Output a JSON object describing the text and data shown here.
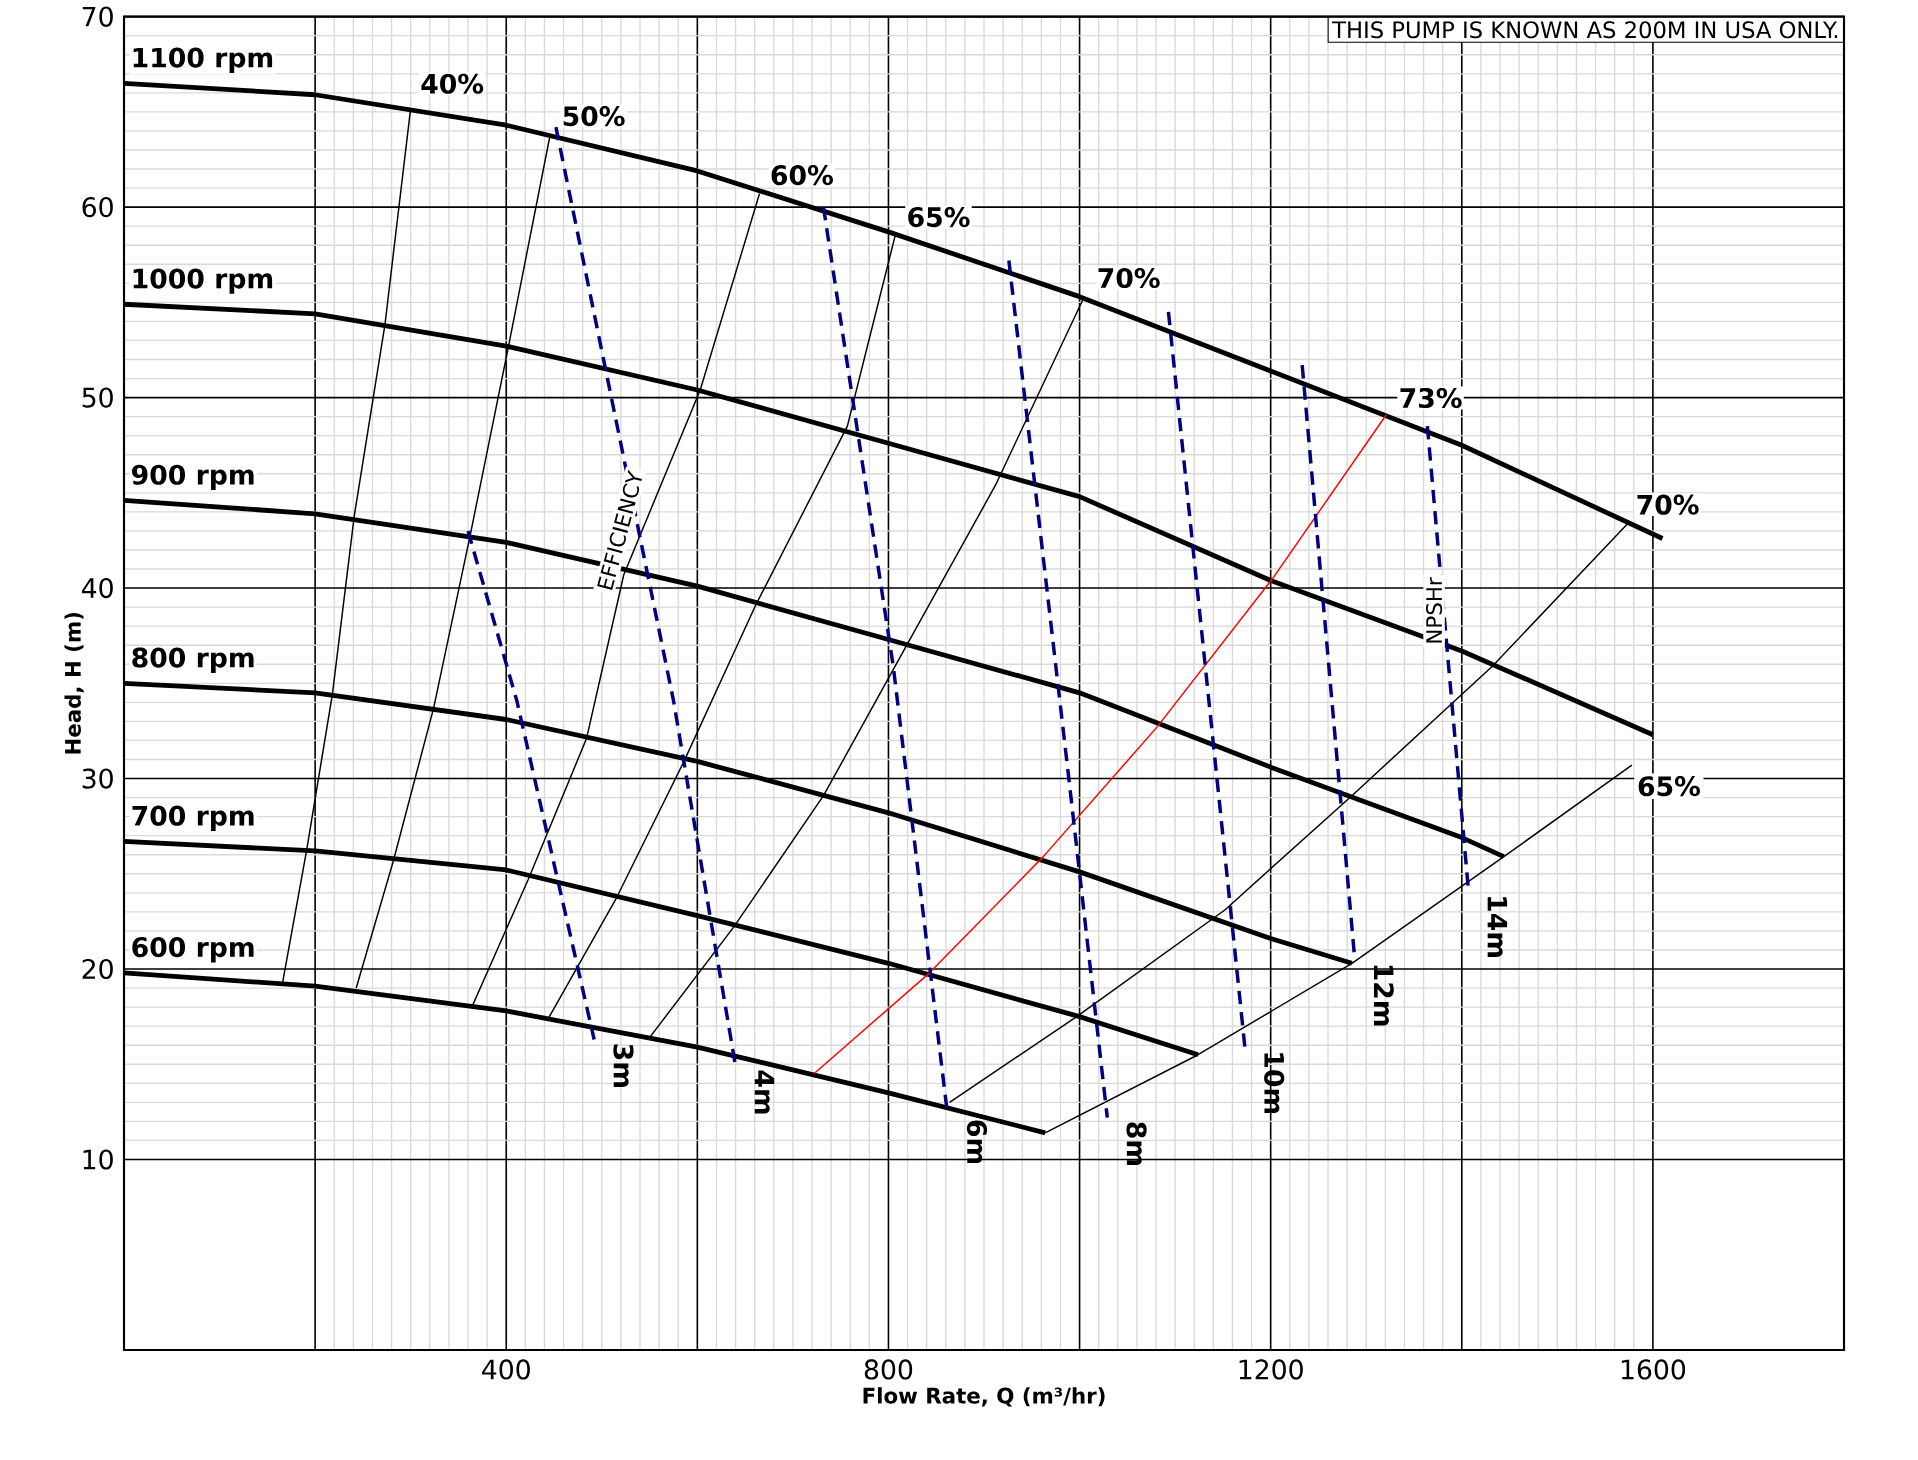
{
  "chart_data": {
    "type": "line",
    "xlabel": "Flow Rate, Q (m³/hr)",
    "ylabel": "Head, H (m)",
    "xlim": [
      0,
      1800
    ],
    "ylim": [
      0,
      70
    ],
    "xticks": [
      {
        "value": 200,
        "label": null
      },
      400,
      {
        "value": 600,
        "label": null
      },
      800,
      {
        "value": 1000,
        "label": null
      },
      1200,
      {
        "value": 1400,
        "label": null
      },
      1600
    ],
    "yticks": [
      10,
      20,
      30,
      40,
      50,
      60,
      70
    ],
    "grid": true,
    "marker": "none",
    "line_style": "solid",
    "series": [
      {
        "color": "#000000",
        "x": [
          0,
          200,
          400,
          600,
          800,
          1000,
          1200,
          1400,
          1610
        ],
        "values": [
          66.5,
          65.9,
          64.3,
          61.9,
          58.7,
          55.3,
          51.4,
          47.5,
          42.6
        ]
      },
      {
        "color": "#000000",
        "x": [
          0,
          200,
          400,
          600,
          800,
          1000,
          1200,
          1400,
          1600
        ],
        "values": [
          54.9,
          54.4,
          52.7,
          50.4,
          47.6,
          44.8,
          40.4,
          36.7,
          32.3
        ]
      },
      {
        "color": "#000000",
        "x": [
          0,
          200,
          400,
          600,
          800,
          1000,
          1200,
          1400,
          1444
        ],
        "values": [
          44.6,
          43.9,
          42.4,
          40.1,
          37.3,
          34.5,
          30.6,
          26.9,
          25.9
        ]
      },
      {
        "color": "#000000",
        "x": [
          0,
          200,
          400,
          600,
          800,
          1000,
          1200,
          1285
        ],
        "values": [
          35.0,
          34.5,
          33.1,
          30.9,
          28.2,
          25.1,
          21.6,
          20.3
        ]
      },
      {
        "color": "#000000",
        "x": [
          0,
          200,
          400,
          600,
          800,
          1000,
          1124
        ],
        "values": [
          26.7,
          26.2,
          25.2,
          22.8,
          20.3,
          17.5,
          15.5
        ]
      },
      {
        "color": "#000000",
        "x": [
          0,
          200,
          400,
          600,
          800,
          964
        ],
        "values": [
          19.8,
          19.1,
          17.8,
          15.9,
          13.5,
          11.4
        ]
      },
      {
        "color": "#000000",
        "x": [
          166,
          191,
          218,
          241,
          273,
          300
        ],
        "values": [
          19.3,
          26.2,
          34.4,
          43.8,
          53.8,
          65.2
        ]
      },
      {
        "color": "#000000",
        "x": [
          243,
          282,
          324,
          362,
          402,
          446
        ],
        "values": [
          19.0,
          25.7,
          33.7,
          42.7,
          52.6,
          63.8
        ]
      },
      {
        "color": "#000000",
        "x": [
          364,
          423,
          484,
          523,
          603,
          665
        ],
        "values": [
          18.0,
          24.7,
          32.1,
          40.7,
          50.4,
          60.7
        ]
      },
      {
        "color": "#000000",
        "x": [
          444,
          515,
          586,
          661,
          757,
          807
        ],
        "values": [
          17.4,
          23.7,
          30.9,
          39.1,
          48.5,
          58.5
        ]
      },
      {
        "color": "#000000",
        "x": [
          550,
          638,
          732,
          818,
          912,
          1004
        ],
        "values": [
          16.4,
          22.2,
          29.1,
          36.9,
          45.4,
          55.2
        ]
      },
      {
        "color": "#ff0000",
        "x": [
          722,
          843,
          962,
          1081,
          1202,
          1321
        ],
        "values": [
          14.5,
          19.8,
          25.9,
          32.7,
          40.5,
          49.1
        ]
      },
      {
        "color": "#000000",
        "x": [
          864,
          997,
          1152,
          1285,
          1432,
          1574
        ],
        "values": [
          13.0,
          17.5,
          23.1,
          29.1,
          35.9,
          43.4
        ]
      },
      {
        "color": "#000000",
        "x": [
          964,
          1124,
          1285,
          1444,
          1578
        ],
        "values": [
          11.4,
          15.5,
          20.3,
          25.9,
          30.7
        ]
      },
      {
        "name": "3m",
        "color": "#000080",
        "line_style": "dashed",
        "x": [
          360,
          411,
          492
        ],
        "values": [
          43.0,
          34.1,
          16.3
        ]
      },
      {
        "name": "4m",
        "color": "#000080",
        "line_style": "dashed",
        "x": [
          452,
          575,
          640
        ],
        "values": [
          64.2,
          34.1,
          14.9
        ]
      },
      {
        "name": "6m",
        "color": "#000080",
        "line_style": "dashed",
        "x": [
          732,
          805,
          862
        ],
        "values": [
          60.0,
          35.9,
          12.3
        ]
      },
      {
        "name": "8m",
        "color": "#000080",
        "line_style": "dashed",
        "x": [
          926,
          989,
          1029
        ],
        "values": [
          57.2,
          29.9,
          12.2
        ]
      },
      {
        "name": "10m",
        "color": "#000080",
        "line_style": "dashed",
        "x": [
          1093,
          1173
        ],
        "values": [
          54.5,
          15.9
        ]
      },
      {
        "name": "12m",
        "color": "#000080",
        "line_style": "dashed",
        "x": [
          1233,
          1288
        ],
        "values": [
          51.7,
          20.5
        ]
      },
      {
        "name": "14m",
        "color": "#000080",
        "line_style": "dashed",
        "x": [
          1364,
          1407
        ],
        "values": [
          48.5,
          24.1
        ]
      }
    ],
    "annotations": [
      {
        "text": "1100 rpm",
        "x": 5,
        "y": 66.6
      },
      {
        "text": "1000 rpm",
        "x": 5,
        "y": 55.0
      },
      {
        "text": "900 rpm",
        "x": 5,
        "y": 44.7
      },
      {
        "text": "800 rpm",
        "x": 5,
        "y": 35.1
      },
      {
        "text": "700 rpm",
        "x": 5,
        "y": 26.8
      },
      {
        "text": "600 rpm",
        "x": 5,
        "y": 19.9
      },
      {
        "text": "40%",
        "x": 308,
        "y": 65.5
      },
      {
        "text": "50%",
        "x": 456,
        "y": 63.8
      },
      {
        "text": "60%",
        "x": 674,
        "y": 60.7
      },
      {
        "text": "65%",
        "x": 817,
        "y": 58.5
      },
      {
        "text": "70%",
        "x": 1016,
        "y": 55.3
      },
      {
        "text": "73%",
        "x": 1332,
        "y": 49.0
      },
      {
        "text": "70%",
        "x": 1580,
        "y": 43.4
      },
      "65%",
      "EFFICIENCY",
      {
        "text": "NPSHr",
        "x": 1371,
        "y": 38.8
      },
      "THIS PUMP IS KNOWN AS 200M IN USA ONLY."
    ]
  }
}
